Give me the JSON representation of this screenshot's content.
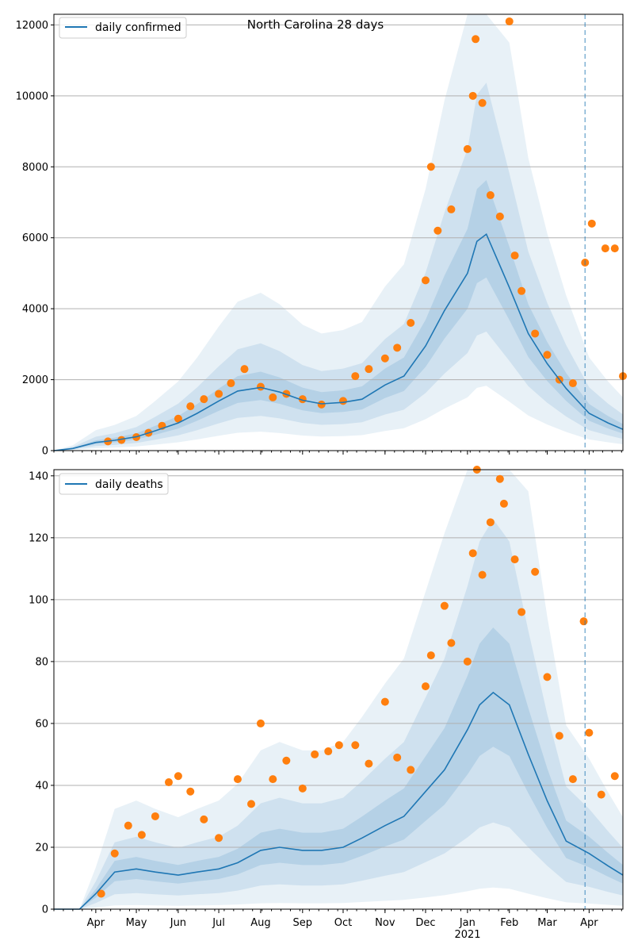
{
  "title": "North Carolina 28 days",
  "colors": {
    "model_line": "#1f77b4",
    "band": "#1f77b4",
    "points": "#ff7f0e",
    "grid": "#b0b0b0",
    "vline": "#1f77b4"
  },
  "x_axis": {
    "month_labels": [
      "Apr",
      "May",
      "Jun",
      "Jul",
      "Aug",
      "Sep",
      "Oct",
      "Nov",
      "Dec",
      "Jan",
      "Feb",
      "Mar",
      "Apr"
    ],
    "month_starts": [
      "2020-04-01",
      "2020-05-01",
      "2020-06-01",
      "2020-07-01",
      "2020-08-01",
      "2020-09-01",
      "2020-10-01",
      "2020-11-01",
      "2020-12-01",
      "2021-01-01",
      "2021-02-01",
      "2021-03-01",
      "2021-04-01"
    ],
    "year_label": "2021",
    "range": [
      "2020-03-01",
      "2021-04-26"
    ]
  },
  "chart_data": [
    {
      "type": "line",
      "legend": "daily confirmed",
      "legend_position": "top-left",
      "grid": "horizontal",
      "ylim": [
        0,
        12300
      ],
      "yticks": [
        0,
        2000,
        4000,
        6000,
        8000,
        10000,
        12000
      ],
      "forecast_start": "2021-03-29",
      "model": {
        "name": "daily confirmed",
        "x": [
          "2020-03-01",
          "2020-03-15",
          "2020-04-01",
          "2020-04-15",
          "2020-05-01",
          "2020-05-15",
          "2020-06-01",
          "2020-06-15",
          "2020-07-01",
          "2020-07-15",
          "2020-08-01",
          "2020-08-15",
          "2020-09-01",
          "2020-09-15",
          "2020-10-01",
          "2020-10-15",
          "2020-11-01",
          "2020-11-15",
          "2020-12-01",
          "2020-12-15",
          "2021-01-01",
          "2021-01-08",
          "2021-01-15",
          "2021-02-01",
          "2021-02-15",
          "2021-03-01",
          "2021-03-15",
          "2021-04-01",
          "2021-04-15",
          "2021-04-26"
        ],
        "y": [
          0,
          60,
          230,
          290,
          390,
          560,
          780,
          1050,
          1400,
          1680,
          1780,
          1650,
          1420,
          1320,
          1360,
          1450,
          1850,
          2100,
          2950,
          3950,
          5000,
          5900,
          6100,
          4600,
          3300,
          2450,
          1750,
          1050,
          780,
          600
        ]
      },
      "bands": [
        {
          "level": "inner",
          "lower_ratio": 0.8,
          "upper_ratio": 1.25
        },
        {
          "level": "middle",
          "lower_ratio": 0.55,
          "upper_ratio": 1.7
        },
        {
          "level": "outer",
          "lower_ratio": 0.3,
          "upper_ratio": 2.5
        }
      ],
      "observed": [
        [
          "2020-04-10",
          260
        ],
        [
          "2020-04-20",
          300
        ],
        [
          "2020-05-01",
          380
        ],
        [
          "2020-05-10",
          500
        ],
        [
          "2020-05-20",
          700
        ],
        [
          "2020-06-01",
          900
        ],
        [
          "2020-06-10",
          1250
        ],
        [
          "2020-06-20",
          1450
        ],
        [
          "2020-07-01",
          1600
        ],
        [
          "2020-07-10",
          1900
        ],
        [
          "2020-07-20",
          2300
        ],
        [
          "2020-08-01",
          1800
        ],
        [
          "2020-08-10",
          1500
        ],
        [
          "2020-08-20",
          1600
        ],
        [
          "2020-09-01",
          1450
        ],
        [
          "2020-09-15",
          1300
        ],
        [
          "2020-10-01",
          1400
        ],
        [
          "2020-10-10",
          2100
        ],
        [
          "2020-10-20",
          2300
        ],
        [
          "2020-11-01",
          2600
        ],
        [
          "2020-11-10",
          2900
        ],
        [
          "2020-11-20",
          3600
        ],
        [
          "2020-12-01",
          4800
        ],
        [
          "2020-12-05",
          8000
        ],
        [
          "2020-12-10",
          6200
        ],
        [
          "2020-12-20",
          6800
        ],
        [
          "2021-01-01",
          8500
        ],
        [
          "2021-01-05",
          10000
        ],
        [
          "2021-01-07",
          11600
        ],
        [
          "2021-01-12",
          9800
        ],
        [
          "2021-01-18",
          7200
        ],
        [
          "2021-01-25",
          6600
        ],
        [
          "2021-02-01",
          12100
        ],
        [
          "2021-02-05",
          5500
        ],
        [
          "2021-02-10",
          4500
        ],
        [
          "2021-02-20",
          3300
        ],
        [
          "2021-03-01",
          2700
        ],
        [
          "2021-03-10",
          2000
        ],
        [
          "2021-03-20",
          1900
        ],
        [
          "2021-03-29",
          5300
        ],
        [
          "2021-04-03",
          6400
        ],
        [
          "2021-04-13",
          5700
        ],
        [
          "2021-04-20",
          5700
        ],
        [
          "2021-04-26",
          2100
        ]
      ]
    },
    {
      "type": "line",
      "legend": "daily deaths",
      "legend_position": "top-left",
      "grid": "horizontal",
      "ylim": [
        0,
        142
      ],
      "yticks": [
        0,
        20,
        40,
        60,
        80,
        100,
        120,
        140
      ],
      "forecast_start": "2021-03-29",
      "model": {
        "name": "daily deaths",
        "x": [
          "2020-03-01",
          "2020-03-20",
          "2020-04-01",
          "2020-04-15",
          "2020-05-01",
          "2020-05-15",
          "2020-06-01",
          "2020-06-15",
          "2020-07-01",
          "2020-07-15",
          "2020-08-01",
          "2020-08-15",
          "2020-09-01",
          "2020-09-15",
          "2020-10-01",
          "2020-10-15",
          "2020-11-01",
          "2020-11-15",
          "2020-12-01",
          "2020-12-15",
          "2021-01-01",
          "2021-01-10",
          "2021-01-20",
          "2021-02-01",
          "2021-02-15",
          "2021-03-01",
          "2021-03-15",
          "2021-04-01",
          "2021-04-15",
          "2021-04-26"
        ],
        "y": [
          0,
          0,
          5,
          12,
          13,
          12,
          11,
          12,
          13,
          15,
          19,
          20,
          19,
          19,
          20,
          23,
          27,
          30,
          38,
          45,
          58,
          66,
          70,
          66,
          50,
          35,
          22,
          18,
          14,
          11
        ]
      },
      "bands": [
        {
          "level": "inner",
          "lower_ratio": 0.75,
          "upper_ratio": 1.3
        },
        {
          "level": "middle",
          "lower_ratio": 0.4,
          "upper_ratio": 1.8
        },
        {
          "level": "outer",
          "lower_ratio": 0.1,
          "upper_ratio": 2.7
        }
      ],
      "observed": [
        [
          "2020-04-05",
          5
        ],
        [
          "2020-04-15",
          18
        ],
        [
          "2020-04-25",
          27
        ],
        [
          "2020-05-05",
          24
        ],
        [
          "2020-05-15",
          30
        ],
        [
          "2020-05-25",
          41
        ],
        [
          "2020-06-01",
          43
        ],
        [
          "2020-06-10",
          38
        ],
        [
          "2020-06-20",
          29
        ],
        [
          "2020-07-01",
          23
        ],
        [
          "2020-07-15",
          42
        ],
        [
          "2020-07-25",
          34
        ],
        [
          "2020-08-01",
          60
        ],
        [
          "2020-08-10",
          42
        ],
        [
          "2020-08-20",
          48
        ],
        [
          "2020-09-01",
          39
        ],
        [
          "2020-09-10",
          50
        ],
        [
          "2020-09-20",
          51
        ],
        [
          "2020-09-28",
          53
        ],
        [
          "2020-10-10",
          53
        ],
        [
          "2020-10-20",
          47
        ],
        [
          "2020-11-01",
          67
        ],
        [
          "2020-11-10",
          49
        ],
        [
          "2020-11-20",
          45
        ],
        [
          "2020-12-01",
          72
        ],
        [
          "2020-12-05",
          82
        ],
        [
          "2020-12-15",
          98
        ],
        [
          "2020-12-20",
          86
        ],
        [
          "2021-01-01",
          80
        ],
        [
          "2021-01-05",
          115
        ],
        [
          "2021-01-08",
          142
        ],
        [
          "2021-01-12",
          108
        ],
        [
          "2021-01-18",
          125
        ],
        [
          "2021-01-25",
          139
        ],
        [
          "2021-01-28",
          131
        ],
        [
          "2021-02-05",
          113
        ],
        [
          "2021-02-10",
          96
        ],
        [
          "2021-02-20",
          109
        ],
        [
          "2021-03-01",
          75
        ],
        [
          "2021-03-10",
          56
        ],
        [
          "2021-03-20",
          42
        ],
        [
          "2021-03-28",
          93
        ],
        [
          "2021-04-01",
          57
        ],
        [
          "2021-04-10",
          37
        ],
        [
          "2021-04-20",
          43
        ]
      ]
    }
  ]
}
